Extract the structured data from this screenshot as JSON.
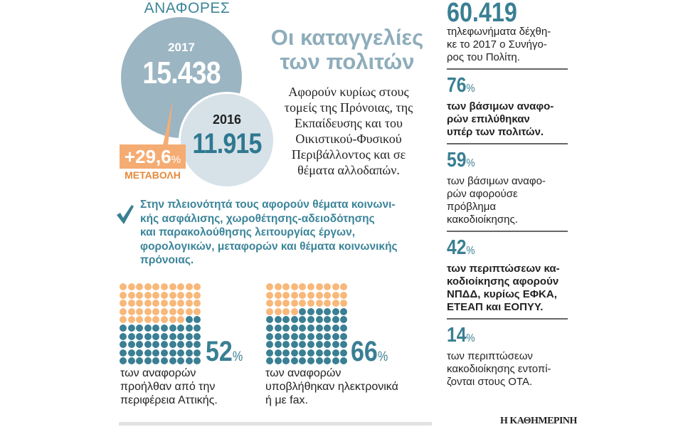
{
  "header": {
    "reports_label": "ΑΝΑΦΟΡΕΣ"
  },
  "circles": {
    "y2017": {
      "year": "2017",
      "value": "15.438"
    },
    "y2016": {
      "year": "2016",
      "value": "11.915"
    }
  },
  "change": {
    "value": "+29,6",
    "unit": "%",
    "label": "ΜΕΤΑΒΟΛΗ"
  },
  "title": {
    "line1": "Οι καταγγελίες",
    "line2": "των πολιτών"
  },
  "description": [
    "Αφορούν κυρίως στους",
    "τομείς της Πρόνοιας, της",
    "Εκπαίδευσης και του",
    "Οικιστικού-Φυσικού",
    "Περιβάλλοντος και σε",
    "θέματα αλλοδαπών."
  ],
  "bullet": [
    "Στην πλειονότητά τους αφορούν θέματα κοινωνι-",
    "κής ασφάλισης, χωροθέτησης-αδειοδότησης",
    "και παρακολούθησης λειτουργίας έργων,",
    "φορολογικών, μεταφορών και θέματα κοινωνικής",
    "πρόνοιας."
  ],
  "waffles": [
    {
      "percent": "52",
      "unit": "%",
      "filled": 52,
      "caption": [
        "των αναφορών",
        "προήλθαν από την",
        "περιφέρεια Αττικής."
      ]
    },
    {
      "percent": "66",
      "unit": "%",
      "filled": 66,
      "caption": [
        "των αναφορών",
        "υποβλήθηκαν ηλεκτρονικά",
        "ή με fax."
      ]
    }
  ],
  "colors": {
    "teal": "#3a7f93",
    "light_teal": "#9bb5c2",
    "pale_blue": "#d6e2e8",
    "orange": "#f5ac73",
    "dark_orange": "#e68a3c"
  },
  "stats": [
    {
      "number": "60.419",
      "unit": "",
      "bold": false,
      "text": [
        "τηλεφωνήματα δέχθη-",
        "κε το 2017 ο Συνήγο-",
        "ρος του Πολίτη."
      ]
    },
    {
      "number": "76",
      "unit": "%",
      "bold": true,
      "text": [
        "των βάσιμων αναφο-",
        "ρών επιλύθηκαν",
        "υπέρ των πολιτών."
      ]
    },
    {
      "number": "59",
      "unit": "%",
      "bold": false,
      "text": [
        "των βάσιμων αναφο-",
        "ρών αφορούσε",
        "πρόβλημα",
        "κακοδιοίκησης."
      ]
    },
    {
      "number": "42",
      "unit": "%",
      "bold": true,
      "text": [
        "των περιπτώσεων κα-",
        "κοδιοίκησης αφορούν",
        "ΝΠΔΔ, κυρίως ΕΦΚΑ,",
        "ΕΤΕΑΠ και ΕΟΠΥΥ."
      ]
    },
    {
      "number": "14",
      "unit": "%",
      "bold": false,
      "text": [
        "των περιπτώσεων",
        "κακοδιοίκησης εντοπί-",
        "ζονται στους ΟΤΑ."
      ]
    }
  ],
  "footer": {
    "brand": "Η ΚΑΘΗΜΕΡΙΝΗ"
  }
}
